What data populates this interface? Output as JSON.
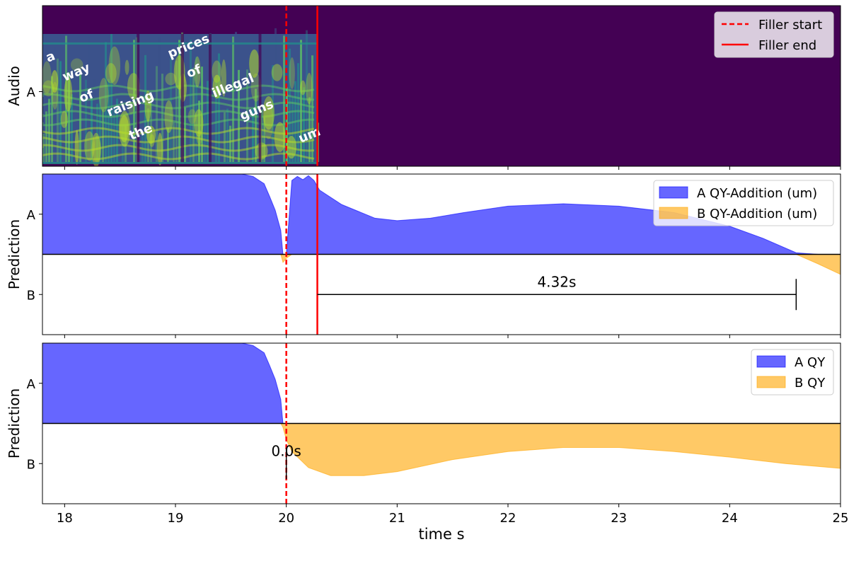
{
  "chart_data": [
    {
      "type": "area",
      "panel": "audio",
      "ylabel": "Audio",
      "ytick_labels": [
        "A"
      ],
      "words": [
        {
          "text": "a",
          "t": 17.85
        },
        {
          "text": "way",
          "t": 18.0
        },
        {
          "text": "of",
          "t": 18.15
        },
        {
          "text": "raising",
          "t": 18.4
        },
        {
          "text": "the",
          "t": 18.6
        },
        {
          "text": "prices",
          "t": 18.95
        },
        {
          "text": "of",
          "t": 19.12
        },
        {
          "text": "illegal",
          "t": 19.35
        },
        {
          "text": "guns",
          "t": 19.6
        },
        {
          "text": "um",
          "t": 20.13
        }
      ],
      "legend": {
        "placement": "upper right",
        "entries": [
          {
            "label": "Filler start",
            "style": "dashed",
            "color": "#ff0000"
          },
          {
            "label": "Filler end",
            "style": "solid",
            "color": "#ff0000"
          }
        ]
      },
      "filler_start": 20.0,
      "filler_end": 20.28,
      "speech_end": 20.28,
      "colors": {
        "background": "#440154",
        "speech_low": "#3b528b",
        "speech_mid": "#21918c",
        "speech_high": "#5ec962",
        "speech_peak": "#b8de29"
      }
    },
    {
      "type": "area",
      "panel": "prediction_filler",
      "ylabel": "Prediction",
      "ytick_labels": [
        "A",
        "B"
      ],
      "ylim": [
        -1,
        1
      ],
      "x": [
        17.8,
        19.6,
        19.7,
        19.8,
        19.85,
        19.9,
        19.95,
        19.97,
        20.0,
        20.05,
        20.1,
        20.15,
        20.2,
        20.25,
        20.3,
        20.5,
        20.8,
        21.0,
        21.3,
        21.6,
        22.0,
        22.5,
        23.0,
        23.5,
        24.0,
        24.3,
        24.6,
        24.8,
        25.0
      ],
      "series": [
        {
          "name": "A QY-Addition (um)",
          "color": "#0000ff",
          "values": [
            1.0,
            1.0,
            0.97,
            0.88,
            0.72,
            0.55,
            0.3,
            0.0,
            0.0,
            0.92,
            0.97,
            0.93,
            0.98,
            0.92,
            0.8,
            0.62,
            0.45,
            0.42,
            0.45,
            0.52,
            0.6,
            0.63,
            0.6,
            0.52,
            0.35,
            0.2,
            0.02,
            0.0,
            0.0
          ]
        },
        {
          "name": "B QY-Addition (um)",
          "color": "#ffa500",
          "values": [
            0,
            0,
            0,
            0,
            0,
            0,
            0,
            0.1,
            0.05,
            0,
            0,
            0,
            0,
            0,
            0,
            0,
            0,
            0,
            0,
            0,
            0,
            0,
            0,
            0,
            0,
            0,
            0.0,
            0.12,
            0.25
          ]
        }
      ],
      "legend_placement": "upper right",
      "annotation": {
        "label": "4.32s",
        "from": 20.28,
        "to": 24.6
      }
    },
    {
      "type": "area",
      "panel": "prediction",
      "ylabel": "Prediction",
      "ytick_labels": [
        "A",
        "B"
      ],
      "ylim": [
        -1,
        1
      ],
      "xlabel": "time s",
      "xlim": [
        17.8,
        25
      ],
      "xticks": [
        18,
        19,
        20,
        21,
        22,
        23,
        24,
        25
      ],
      "x": [
        17.8,
        19.6,
        19.7,
        19.8,
        19.85,
        19.9,
        19.95,
        19.97,
        20.0,
        20.05,
        20.2,
        20.4,
        20.7,
        21.0,
        21.5,
        22.0,
        22.5,
        23.0,
        23.5,
        24.0,
        24.5,
        25.0
      ],
      "series": [
        {
          "name": "A QY",
          "color": "#0000ff",
          "values": [
            1.0,
            1.0,
            0.97,
            0.88,
            0.72,
            0.55,
            0.3,
            0.0,
            0.0,
            0,
            0,
            0,
            0,
            0,
            0,
            0,
            0,
            0,
            0,
            0,
            0,
            0
          ]
        },
        {
          "name": "B QY",
          "color": "#ffa500",
          "values": [
            0,
            0,
            0,
            0,
            0,
            0,
            0,
            0.05,
            0.2,
            0.35,
            0.55,
            0.65,
            0.65,
            0.6,
            0.45,
            0.35,
            0.3,
            0.3,
            0.35,
            0.42,
            0.5,
            0.56
          ]
        }
      ],
      "legend_placement": "upper right",
      "annotation": {
        "label": "0.0s",
        "from": 20.0,
        "to": 20.0
      }
    }
  ]
}
